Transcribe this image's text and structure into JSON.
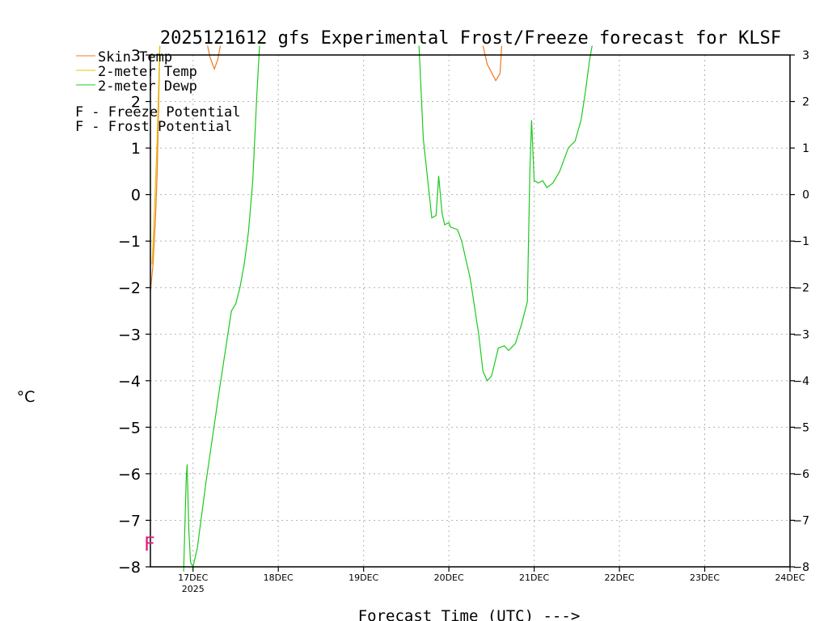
{
  "chart_data": {
    "type": "line",
    "title": "2025121612 gfs Experimental Frost/Freeze forecast for KLSF",
    "ylabel": "°C",
    "xlabel": "Forecast Time (UTC) --->",
    "ylim": [
      -8,
      3
    ],
    "yticks": [
      -8,
      -7,
      -6,
      -5,
      -4,
      -3,
      -2,
      -1,
      0,
      1,
      2,
      3
    ],
    "xlim": [
      0,
      7.5
    ],
    "x_ticks": [
      {
        "pos": 0.5,
        "label": "17DEC",
        "sub": "2025"
      },
      {
        "pos": 1.5,
        "label": "18DEC",
        "sub": ""
      },
      {
        "pos": 2.5,
        "label": "19DEC",
        "sub": ""
      },
      {
        "pos": 3.5,
        "label": "20DEC",
        "sub": ""
      },
      {
        "pos": 4.5,
        "label": "21DEC",
        "sub": ""
      },
      {
        "pos": 5.5,
        "label": "22DEC",
        "sub": ""
      },
      {
        "pos": 6.5,
        "label": "23DEC",
        "sub": ""
      },
      {
        "pos": 7.5,
        "label": "24DEC",
        "sub": ""
      }
    ],
    "grid": true,
    "legend": [
      {
        "name": "Skin Temp",
        "color": "#f07820"
      },
      {
        "name": "2-meter Temp",
        "color": "#e8c000"
      },
      {
        "name": "2-meter Dewp",
        "color": "#1ec81e"
      }
    ],
    "potential_legend": [
      {
        "marker": "F",
        "label": " - Freeze Potential",
        "color": "#e0207e"
      },
      {
        "marker": "F",
        "label": " - Frost Potential",
        "color": "#4050e8"
      }
    ],
    "series": [
      {
        "name": "Skin Temp",
        "color": "#f07820",
        "segments": [
          [
            [
              0.0,
              -2.1
            ],
            [
              0.03,
              -1.5
            ],
            [
              0.06,
              -0.5
            ],
            [
              0.08,
              0.5
            ],
            [
              0.1,
              2.2
            ],
            [
              0.11,
              3.2
            ]
          ],
          [
            [
              0.67,
              3.2
            ],
            [
              0.7,
              2.95
            ],
            [
              0.75,
              2.7
            ],
            [
              0.79,
              2.9
            ],
            [
              0.82,
              3.2
            ]
          ],
          [
            [
              3.9,
              3.2
            ],
            [
              3.95,
              2.8
            ],
            [
              4.05,
              2.45
            ],
            [
              4.1,
              2.6
            ],
            [
              4.12,
              3.2
            ]
          ]
        ]
      },
      {
        "name": "2-meter Temp",
        "color": "#e8c000",
        "segments": [
          [
            [
              0.02,
              -1.5
            ],
            [
              0.05,
              -0.2
            ],
            [
              0.08,
              1.2
            ],
            [
              0.1,
              2.5
            ],
            [
              0.11,
              3.2
            ]
          ]
        ]
      },
      {
        "name": "2-meter Dewp",
        "color": "#1ec81e",
        "segments": [
          [
            [
              0.39,
              -8.1
            ],
            [
              0.42,
              -6.1
            ],
            [
              0.43,
              -5.8
            ],
            [
              0.45,
              -7.2
            ],
            [
              0.47,
              -7.9
            ],
            [
              0.5,
              -8.0
            ],
            [
              0.55,
              -7.6
            ],
            [
              0.65,
              -6.2
            ],
            [
              0.8,
              -4.3
            ],
            [
              0.95,
              -2.5
            ],
            [
              1.0,
              -2.35
            ],
            [
              1.05,
              -2.0
            ],
            [
              1.1,
              -1.5
            ],
            [
              1.15,
              -0.8
            ],
            [
              1.2,
              0.3
            ],
            [
              1.25,
              2.2
            ],
            [
              1.28,
              3.2
            ]
          ],
          [
            [
              3.15,
              3.2
            ],
            [
              3.2,
              1.2
            ],
            [
              3.3,
              -0.5
            ],
            [
              3.35,
              -0.45
            ],
            [
              3.38,
              0.4
            ],
            [
              3.42,
              -0.4
            ],
            [
              3.45,
              -0.65
            ],
            [
              3.5,
              -0.6
            ],
            [
              3.52,
              -0.7
            ],
            [
              3.6,
              -0.75
            ],
            [
              3.65,
              -1.0
            ],
            [
              3.75,
              -1.8
            ],
            [
              3.85,
              -3.0
            ],
            [
              3.9,
              -3.8
            ],
            [
              3.95,
              -4.0
            ],
            [
              4.0,
              -3.9
            ],
            [
              4.08,
              -3.3
            ],
            [
              4.15,
              -3.25
            ],
            [
              4.2,
              -3.35
            ],
            [
              4.28,
              -3.2
            ],
            [
              4.35,
              -2.8
            ],
            [
              4.42,
              -2.3
            ],
            [
              4.45,
              0.5
            ],
            [
              4.47,
              1.6
            ],
            [
              4.5,
              0.3
            ],
            [
              4.55,
              0.25
            ],
            [
              4.6,
              0.3
            ],
            [
              4.65,
              0.15
            ],
            [
              4.72,
              0.25
            ],
            [
              4.8,
              0.5
            ],
            [
              4.9,
              1.0
            ],
            [
              4.98,
              1.15
            ],
            [
              5.05,
              1.6
            ],
            [
              5.1,
              2.2
            ],
            [
              5.15,
              2.9
            ],
            [
              5.18,
              3.2
            ]
          ]
        ]
      }
    ],
    "markers": [
      {
        "text": "F",
        "x": 0.0,
        "y": -7.5,
        "color": "#e0207e"
      }
    ]
  }
}
